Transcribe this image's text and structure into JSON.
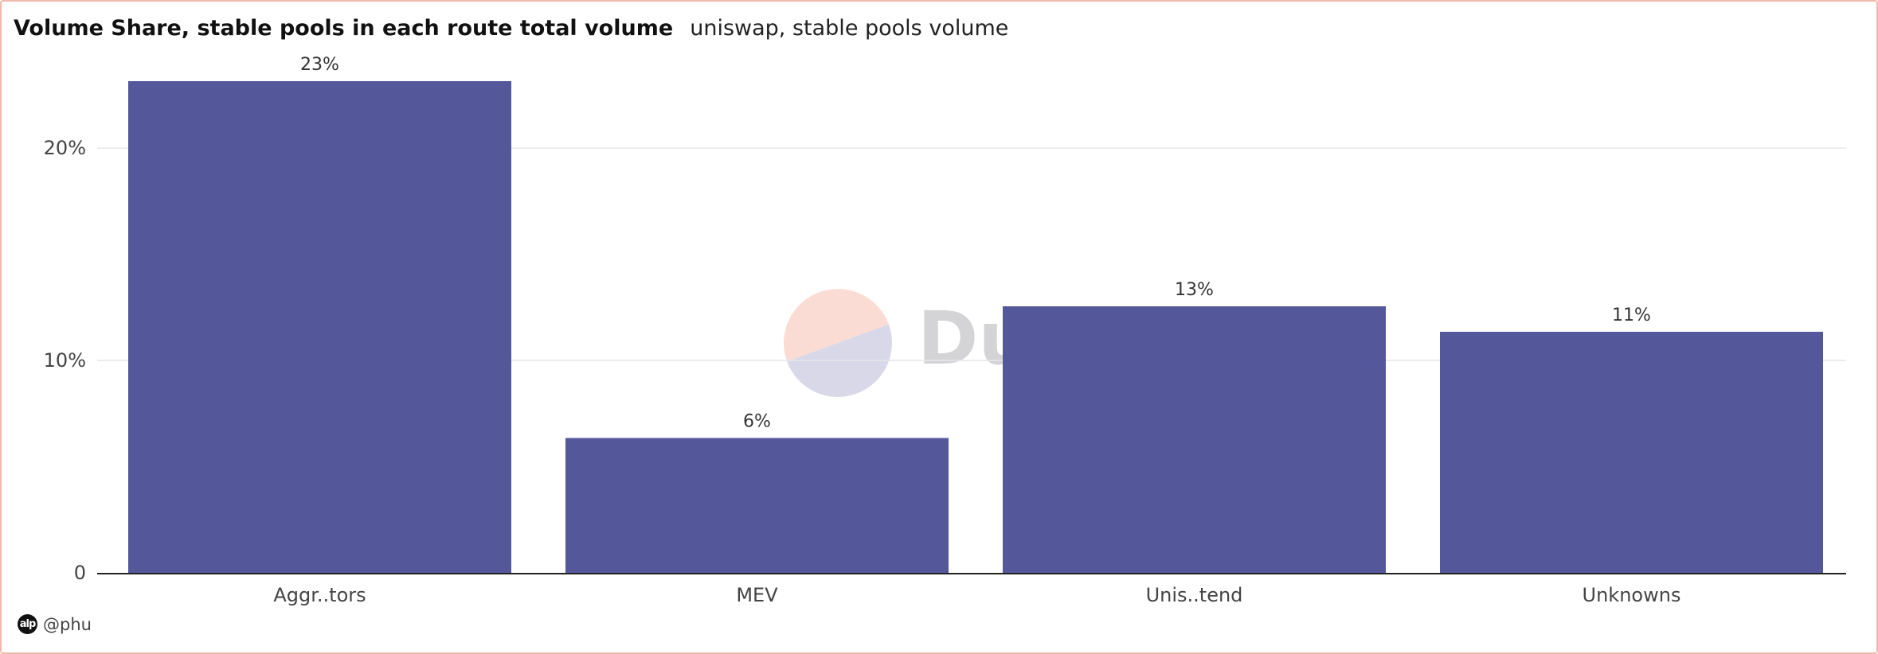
{
  "chart_data": {
    "type": "bar",
    "title": "Volume Share, stable pools in each route total volume",
    "subtitle": "uniswap, stable pools volume",
    "categories": [
      "Aggr..tors",
      "MEV",
      "Unis..tend",
      "Unknowns"
    ],
    "values": [
      0.2315,
      0.0635,
      0.1255,
      0.1135
    ],
    "data_labels": [
      "23%",
      "6%",
      "13%",
      "11%"
    ],
    "ylim": [
      0,
      0.2315
    ],
    "y_ticks": [
      0,
      0.1,
      0.2
    ],
    "y_tick_labels": [
      "0",
      "10%",
      "20%"
    ],
    "xlabel": "",
    "ylabel": "",
    "grid": true,
    "legend": "none",
    "colors": {
      "bar": "#55579b",
      "grid": "#e6e6ec",
      "axis": "#222222"
    }
  },
  "watermark": {
    "text": "Dune",
    "colors": {
      "top": "#fbdcd4",
      "bottom": "#d9d8e8",
      "text": "#d4d4d6"
    }
  },
  "footer": {
    "avatar": "alp",
    "author": "@phu"
  }
}
